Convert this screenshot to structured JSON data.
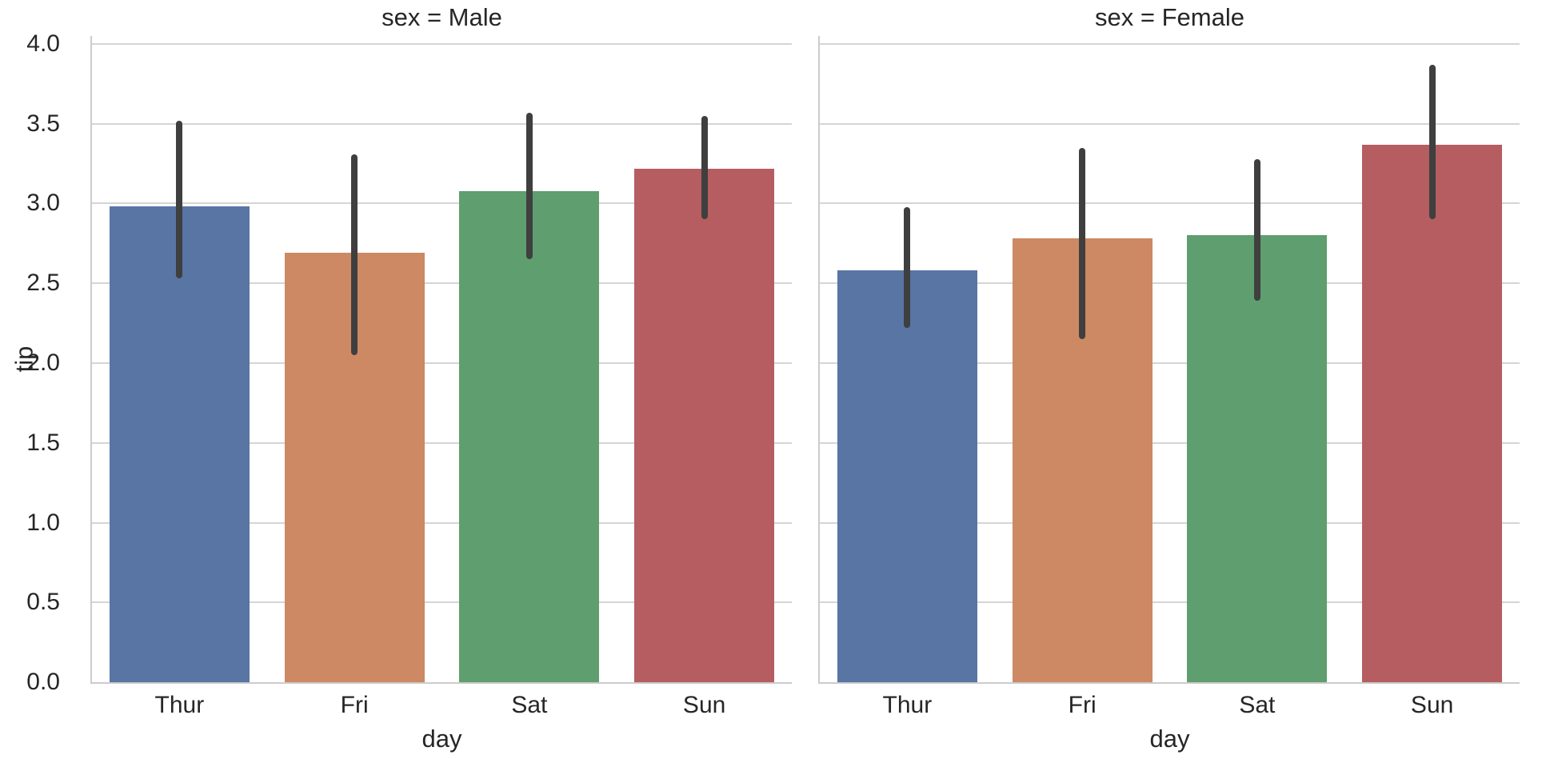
{
  "figure": {
    "background": "#ffffff",
    "text_color": "#262626",
    "grid_color": "#d5d5d5",
    "spine_color": "#cccccc",
    "error_bar_color": "#3f3f3f"
  },
  "chart_data": {
    "type": "bar",
    "xlabel": "day",
    "ylabel": "tip",
    "categories": [
      "Thur",
      "Fri",
      "Sat",
      "Sun"
    ],
    "bar_colors": [
      "#5875A4",
      "#CC8963",
      "#5F9E6E",
      "#B55D60"
    ],
    "ylim": [
      0,
      4.05
    ],
    "yticks": [
      "0.0",
      "0.5",
      "1.0",
      "1.5",
      "2.0",
      "2.5",
      "3.0",
      "3.5",
      "4.0"
    ],
    "grid": true,
    "legend": false,
    "error_bar_style": "95% confidence interval, vertical rounded line",
    "facets": [
      {
        "title": "sex = Male",
        "values": [
          2.98,
          2.69,
          3.08,
          3.22
        ],
        "ci_low": [
          2.53,
          2.05,
          2.65,
          2.9
        ],
        "ci_high": [
          3.52,
          3.31,
          3.57,
          3.55
        ]
      },
      {
        "title": "sex = Female",
        "values": [
          2.58,
          2.78,
          2.8,
          3.37
        ],
        "ci_low": [
          2.22,
          2.15,
          2.39,
          2.9
        ],
        "ci_high": [
          2.98,
          3.35,
          3.28,
          3.87
        ]
      }
    ]
  }
}
